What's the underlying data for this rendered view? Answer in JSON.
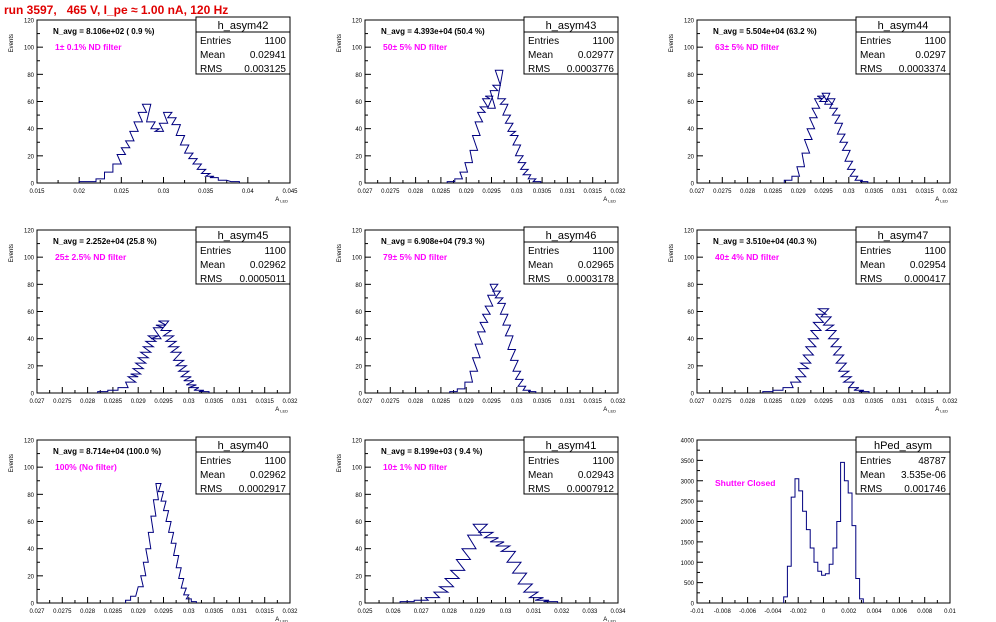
{
  "title": "run 3597,   465 V, I_pe ≈ 1.00 nA, 120 Hz",
  "colors": {
    "hist": "#00007f",
    "label": "#ff00ff",
    "title": "#e00000",
    "axis": "#000000"
  },
  "chart_data": [
    {
      "type": "histogram",
      "name": "h_asym42",
      "ylabel": "Events",
      "xlabel": "A_LED",
      "stats": {
        "entries": "1100",
        "mean": "0.02941",
        "rms": "0.003125"
      },
      "navg": "N_avg = 8.106e+02 ( 0.9 %)",
      "label": "1± 0.1% ND filter",
      "xlim": [
        0.015,
        0.045
      ],
      "ylim": [
        0,
        120
      ],
      "xticks": [
        "0.015",
        "0.02",
        "0.025",
        "0.03",
        "0.035",
        "0.04",
        "0.045"
      ],
      "yticks": [
        "0",
        "20",
        "40",
        "60",
        "80",
        "100",
        "120"
      ],
      "bins": [
        [
          0.0205,
          1
        ],
        [
          0.0215,
          1
        ],
        [
          0.0225,
          3
        ],
        [
          0.0235,
          8
        ],
        [
          0.0245,
          14
        ],
        [
          0.025,
          21
        ],
        [
          0.0255,
          26
        ],
        [
          0.026,
          31
        ],
        [
          0.0265,
          38
        ],
        [
          0.027,
          45
        ],
        [
          0.0275,
          52
        ],
        [
          0.028,
          58
        ],
        [
          0.0285,
          45
        ],
        [
          0.029,
          40
        ],
        [
          0.0295,
          38
        ],
        [
          0.03,
          44
        ],
        [
          0.0305,
          52
        ],
        [
          0.031,
          48
        ],
        [
          0.0315,
          43
        ],
        [
          0.032,
          35
        ],
        [
          0.0325,
          28
        ],
        [
          0.033,
          22
        ],
        [
          0.0335,
          18
        ],
        [
          0.034,
          14
        ],
        [
          0.0345,
          10
        ],
        [
          0.035,
          7
        ],
        [
          0.0355,
          5
        ],
        [
          0.036,
          4
        ],
        [
          0.037,
          2
        ],
        [
          0.0385,
          1
        ]
      ]
    },
    {
      "type": "histogram",
      "name": "h_asym43",
      "ylabel": "Events",
      "xlabel": "A_LED",
      "stats": {
        "entries": "1100",
        "mean": "0.02977",
        "rms": "0.0003776"
      },
      "navg": "N_avg = 4.393e+04 (50.4 %)",
      "label": "50± 5% ND filter",
      "xlim": [
        0.027,
        0.032
      ],
      "ylim": [
        0,
        120
      ],
      "xticks": [
        "0.027",
        "0.0275",
        "0.028",
        "0.0285",
        "0.029",
        "0.0295",
        "0.03",
        "0.0305",
        "0.031",
        "0.0315",
        "0.032"
      ],
      "yticks": [
        "0",
        "20",
        "40",
        "60",
        "80",
        "100",
        "120"
      ],
      "bins": [
        [
          0.0287,
          1
        ],
        [
          0.02885,
          3
        ],
        [
          0.02895,
          8
        ],
        [
          0.02905,
          15
        ],
        [
          0.02915,
          24
        ],
        [
          0.0292,
          35
        ],
        [
          0.02925,
          45
        ],
        [
          0.0293,
          52
        ],
        [
          0.02935,
          56
        ],
        [
          0.0294,
          62
        ],
        [
          0.02945,
          64
        ],
        [
          0.0295,
          55
        ],
        [
          0.02955,
          68
        ],
        [
          0.0296,
          72
        ],
        [
          0.02965,
          83
        ],
        [
          0.0297,
          62
        ],
        [
          0.02975,
          58
        ],
        [
          0.0298,
          50
        ],
        [
          0.02985,
          44
        ],
        [
          0.0299,
          38
        ],
        [
          0.02995,
          35
        ],
        [
          0.03,
          28
        ],
        [
          0.03005,
          20
        ],
        [
          0.0301,
          15
        ],
        [
          0.03015,
          10
        ],
        [
          0.0302,
          6
        ],
        [
          0.0303,
          3
        ],
        [
          0.0304,
          1
        ]
      ]
    },
    {
      "type": "histogram",
      "name": "h_asym44",
      "ylabel": "Events",
      "xlabel": "A_LED",
      "stats": {
        "entries": "1100",
        "mean": "0.0297",
        "rms": "0.0003374"
      },
      "navg": "N_avg = 5.504e+04 (63.2 %)",
      "label": "63± 5% ND filter",
      "xlim": [
        0.027,
        0.032
      ],
      "ylim": [
        0,
        120
      ],
      "xticks": [
        "0.027",
        "0.0275",
        "0.028",
        "0.0285",
        "0.029",
        "0.0295",
        "0.03",
        "0.0305",
        "0.031",
        "0.0315",
        "0.032"
      ],
      "yticks": [
        "0",
        "20",
        "40",
        "60",
        "80",
        "100",
        "120"
      ],
      "bins": [
        [
          0.0288,
          2
        ],
        [
          0.02895,
          5
        ],
        [
          0.02905,
          12
        ],
        [
          0.02915,
          22
        ],
        [
          0.0292,
          32
        ],
        [
          0.02925,
          40
        ],
        [
          0.0293,
          48
        ],
        [
          0.02935,
          55
        ],
        [
          0.0294,
          62
        ],
        [
          0.02945,
          64
        ],
        [
          0.0295,
          60
        ],
        [
          0.02955,
          66
        ],
        [
          0.0296,
          58
        ],
        [
          0.02965,
          62
        ],
        [
          0.0297,
          55
        ],
        [
          0.02975,
          50
        ],
        [
          0.0298,
          44
        ],
        [
          0.02985,
          36
        ],
        [
          0.0299,
          30
        ],
        [
          0.02995,
          24
        ],
        [
          0.03,
          16
        ],
        [
          0.03005,
          10
        ],
        [
          0.0301,
          5
        ],
        [
          0.0302,
          2
        ],
        [
          0.0303,
          1
        ]
      ]
    },
    {
      "type": "histogram",
      "name": "h_asym45",
      "ylabel": "Events",
      "xlabel": "A_LED",
      "stats": {
        "entries": "1100",
        "mean": "0.02962",
        "rms": "0.0005011"
      },
      "navg": "N_avg = 2.252e+04 (25.8 %)",
      "label": "25± 2.5% ND filter",
      "xlim": [
        0.027,
        0.032
      ],
      "ylim": [
        0,
        120
      ],
      "xticks": [
        "0.027",
        "0.0275",
        "0.028",
        "0.0285",
        "0.029",
        "0.0295",
        "0.03",
        "0.0305",
        "0.031",
        "0.0315",
        "0.032"
      ],
      "yticks": [
        "0",
        "20",
        "40",
        "60",
        "80",
        "100",
        "120"
      ],
      "bins": [
        [
          0.0283,
          1
        ],
        [
          0.0285,
          2
        ],
        [
          0.0287,
          4
        ],
        [
          0.02885,
          8
        ],
        [
          0.0289,
          12
        ],
        [
          0.02895,
          14
        ],
        [
          0.029,
          18
        ],
        [
          0.02905,
          22
        ],
        [
          0.0291,
          26
        ],
        [
          0.02915,
          30
        ],
        [
          0.0292,
          34
        ],
        [
          0.02925,
          38
        ],
        [
          0.0293,
          42
        ],
        [
          0.02935,
          40
        ],
        [
          0.0294,
          48
        ],
        [
          0.02945,
          50
        ],
        [
          0.0295,
          53
        ],
        [
          0.02955,
          46
        ],
        [
          0.0296,
          42
        ],
        [
          0.02965,
          38
        ],
        [
          0.0297,
          34
        ],
        [
          0.02975,
          30
        ],
        [
          0.0298,
          24
        ],
        [
          0.02985,
          20
        ],
        [
          0.0299,
          16
        ],
        [
          0.02995,
          12
        ],
        [
          0.03,
          9
        ],
        [
          0.03005,
          6
        ],
        [
          0.0301,
          4
        ],
        [
          0.0302,
          2
        ],
        [
          0.0303,
          1
        ]
      ]
    },
    {
      "type": "histogram",
      "name": "h_asym46",
      "ylabel": "Events",
      "xlabel": "A_LED",
      "stats": {
        "entries": "1100",
        "mean": "0.02965",
        "rms": "0.0003178"
      },
      "navg": "N_avg = 6.908e+04 (79.3 %)",
      "label": "79± 5% ND filter",
      "xlim": [
        0.027,
        0.032
      ],
      "ylim": [
        0,
        120
      ],
      "xticks": [
        "0.027",
        "0.0275",
        "0.028",
        "0.0285",
        "0.029",
        "0.0295",
        "0.03",
        "0.0305",
        "0.031",
        "0.0315",
        "0.032"
      ],
      "yticks": [
        "0",
        "20",
        "40",
        "60",
        "80",
        "100",
        "120"
      ],
      "bins": [
        [
          0.02875,
          1
        ],
        [
          0.0289,
          3
        ],
        [
          0.02905,
          8
        ],
        [
          0.02915,
          16
        ],
        [
          0.0292,
          26
        ],
        [
          0.02925,
          36
        ],
        [
          0.0293,
          45
        ],
        [
          0.02935,
          52
        ],
        [
          0.0294,
          58
        ],
        [
          0.02945,
          64
        ],
        [
          0.0295,
          72
        ],
        [
          0.02955,
          80
        ],
        [
          0.0296,
          75
        ],
        [
          0.02965,
          70
        ],
        [
          0.0297,
          66
        ],
        [
          0.02975,
          58
        ],
        [
          0.0298,
          50
        ],
        [
          0.02985,
          42
        ],
        [
          0.0299,
          32
        ],
        [
          0.02995,
          24
        ],
        [
          0.03,
          16
        ],
        [
          0.03005,
          10
        ],
        [
          0.0301,
          5
        ],
        [
          0.0302,
          2
        ],
        [
          0.0303,
          1
        ]
      ]
    },
    {
      "type": "histogram",
      "name": "h_asym47",
      "ylabel": "Events",
      "xlabel": "A_LED",
      "stats": {
        "entries": "1100",
        "mean": "0.02954",
        "rms": "0.000417"
      },
      "navg": "N_avg = 3.510e+04 (40.3 %)",
      "label": "40± 4% ND filter",
      "xlim": [
        0.027,
        0.032
      ],
      "ylim": [
        0,
        120
      ],
      "xticks": [
        "0.027",
        "0.0275",
        "0.028",
        "0.0285",
        "0.029",
        "0.0295",
        "0.03",
        "0.0305",
        "0.031",
        "0.0315",
        "0.032"
      ],
      "yticks": [
        "0",
        "20",
        "40",
        "60",
        "80",
        "100",
        "120"
      ],
      "bins": [
        [
          0.0284,
          1
        ],
        [
          0.0286,
          2
        ],
        [
          0.0288,
          4
        ],
        [
          0.02895,
          8
        ],
        [
          0.02905,
          12
        ],
        [
          0.0291,
          18
        ],
        [
          0.02915,
          22
        ],
        [
          0.0292,
          28
        ],
        [
          0.02925,
          34
        ],
        [
          0.0293,
          40
        ],
        [
          0.02935,
          46
        ],
        [
          0.0294,
          52
        ],
        [
          0.02945,
          58
        ],
        [
          0.0295,
          62
        ],
        [
          0.02955,
          56
        ],
        [
          0.0296,
          50
        ],
        [
          0.02965,
          46
        ],
        [
          0.0297,
          40
        ],
        [
          0.02975,
          34
        ],
        [
          0.0298,
          28
        ],
        [
          0.02985,
          22
        ],
        [
          0.0299,
          16
        ],
        [
          0.02995,
          12
        ],
        [
          0.03,
          8
        ],
        [
          0.0301,
          4
        ],
        [
          0.0302,
          2
        ],
        [
          0.0303,
          1
        ]
      ]
    },
    {
      "type": "histogram",
      "name": "h_asym40",
      "ylabel": "Events",
      "xlabel": "A_LED",
      "stats": {
        "entries": "1100",
        "mean": "0.02962",
        "rms": "0.0002917"
      },
      "navg": "N_avg = 8.714e+04 (100.0 %)",
      "label": "100% (No filter)",
      "xlim": [
        0.027,
        0.032
      ],
      "ylim": [
        0,
        120
      ],
      "xticks": [
        "0.027",
        "0.0275",
        "0.028",
        "0.0285",
        "0.029",
        "0.0295",
        "0.03",
        "0.0305",
        "0.031",
        "0.0315",
        "0.032"
      ],
      "yticks": [
        "0",
        "20",
        "40",
        "60",
        "80",
        "100",
        "120"
      ],
      "bins": [
        [
          0.0288,
          2
        ],
        [
          0.0289,
          5
        ],
        [
          0.02905,
          12
        ],
        [
          0.0291,
          20
        ],
        [
          0.02915,
          30
        ],
        [
          0.0292,
          40
        ],
        [
          0.02925,
          52
        ],
        [
          0.0293,
          64
        ],
        [
          0.02935,
          76
        ],
        [
          0.0294,
          88
        ],
        [
          0.02945,
          82
        ],
        [
          0.0295,
          75
        ],
        [
          0.02955,
          68
        ],
        [
          0.0296,
          60
        ],
        [
          0.02965,
          52
        ],
        [
          0.0297,
          44
        ],
        [
          0.02975,
          35
        ],
        [
          0.0298,
          26
        ],
        [
          0.02985,
          18
        ],
        [
          0.0299,
          11
        ],
        [
          0.02995,
          6
        ],
        [
          0.03,
          3
        ],
        [
          0.0301,
          1
        ]
      ]
    },
    {
      "type": "histogram",
      "name": "h_asym41",
      "ylabel": "Events",
      "xlabel": "A_LED",
      "stats": {
        "entries": "1100",
        "mean": "0.02943",
        "rms": "0.0007912"
      },
      "navg": "N_avg = 8.199e+03 ( 9.4 %)",
      "label": "10± 1% ND filter",
      "xlim": [
        0.025,
        0.034
      ],
      "ylim": [
        0,
        120
      ],
      "xticks": [
        "0.025",
        "0.026",
        "0.027",
        "0.028",
        "0.029",
        "0.03",
        "0.031",
        "0.032",
        "0.033",
        "0.034"
      ],
      "yticks": [
        "0",
        "20",
        "40",
        "60",
        "80",
        "100",
        "120"
      ],
      "bins": [
        [
          0.0265,
          1
        ],
        [
          0.027,
          2
        ],
        [
          0.0274,
          4
        ],
        [
          0.0277,
          8
        ],
        [
          0.0279,
          12
        ],
        [
          0.0281,
          18
        ],
        [
          0.0283,
          24
        ],
        [
          0.0285,
          32
        ],
        [
          0.0287,
          40
        ],
        [
          0.0289,
          50
        ],
        [
          0.0291,
          58
        ],
        [
          0.0293,
          52
        ],
        [
          0.0295,
          48
        ],
        [
          0.0297,
          45
        ],
        [
          0.0299,
          42
        ],
        [
          0.0301,
          38
        ],
        [
          0.0303,
          30
        ],
        [
          0.0305,
          22
        ],
        [
          0.0307,
          14
        ],
        [
          0.0309,
          8
        ],
        [
          0.0311,
          4
        ],
        [
          0.0313,
          2
        ],
        [
          0.0316,
          1
        ]
      ]
    },
    {
      "type": "histogram",
      "name": "hPed_asym",
      "ylabel": "",
      "xlabel": "",
      "stats": {
        "entries": "48787",
        "mean": "3.535e-06",
        "rms": "0.001746"
      },
      "navg": "",
      "label": "Shutter Closed",
      "xlim": [
        -0.01,
        0.01
      ],
      "ylim": [
        0,
        4000
      ],
      "xticks": [
        "-0.01",
        "-0.008",
        "-0.006",
        "-0.004",
        "-0.002",
        "0",
        "0.002",
        "0.004",
        "0.006",
        "0.008",
        "0.01"
      ],
      "yticks": [
        "0",
        "500",
        "1000",
        "1500",
        "2000",
        "2500",
        "3000",
        "3500",
        "4000"
      ],
      "bins": [
        [
          -0.003,
          150
        ],
        [
          -0.0027,
          900
        ],
        [
          -0.0024,
          2600
        ],
        [
          -0.0021,
          3050
        ],
        [
          -0.0018,
          2750
        ],
        [
          -0.0015,
          2250
        ],
        [
          -0.0012,
          1800
        ],
        [
          -0.0009,
          1350
        ],
        [
          -0.0006,
          1000
        ],
        [
          -0.0003,
          780
        ],
        [
          0,
          680
        ],
        [
          0.0003,
          720
        ],
        [
          0.0006,
          950
        ],
        [
          0.0009,
          1350
        ],
        [
          0.0012,
          2000
        ],
        [
          0.0015,
          3450
        ],
        [
          0.0018,
          3000
        ],
        [
          0.0021,
          2700
        ],
        [
          0.0024,
          1900
        ],
        [
          0.0027,
          600
        ],
        [
          0.003,
          100
        ]
      ]
    }
  ]
}
